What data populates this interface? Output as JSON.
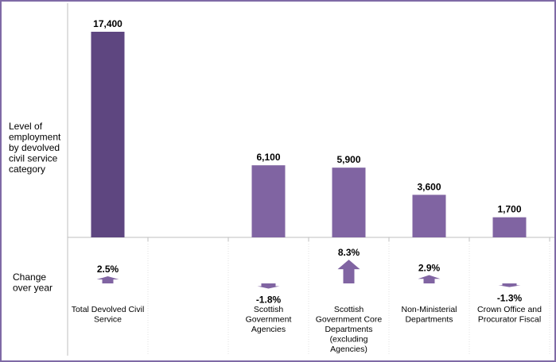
{
  "chart_data": {
    "type": "bar",
    "side_label_level": [
      "Level of",
      "employment",
      "by devolved",
      "civil service",
      "category"
    ],
    "side_label_change": [
      "Change",
      "over year"
    ],
    "categories": [
      {
        "label": [
          "Total Devolved Civil",
          "Service"
        ],
        "value": 17400,
        "value_label": "17,400",
        "change": 2.5,
        "change_label": "2.5%"
      },
      {
        "label": [],
        "value": null,
        "value_label": "",
        "change": null,
        "change_label": ""
      },
      {
        "label": [
          "Scottish",
          "Government",
          "Agencies"
        ],
        "value": 6100,
        "value_label": "6,100",
        "change": -1.8,
        "change_label": "-1.8%"
      },
      {
        "label": [
          "Scottish",
          "Government Core",
          "Departments",
          "(excluding",
          "Agencies)"
        ],
        "value": 5900,
        "value_label": "5,900",
        "change": 8.3,
        "change_label": "8.3%"
      },
      {
        "label": [
          "Non-Ministerial",
          "Departments"
        ],
        "value": 3600,
        "value_label": "3,600",
        "change": 2.9,
        "change_label": "2.9%"
      },
      {
        "label": [
          "Crown Office and",
          "Procurator Fiscal"
        ],
        "value": 1700,
        "value_label": "1,700",
        "change": -1.3,
        "change_label": "-1.3%"
      }
    ],
    "colors": {
      "total_bar": "#5e4680",
      "bar": "#8064a2",
      "arrow": "#8064a2",
      "axis": "#bfbfbf",
      "border": "#7f6aa6"
    }
  }
}
